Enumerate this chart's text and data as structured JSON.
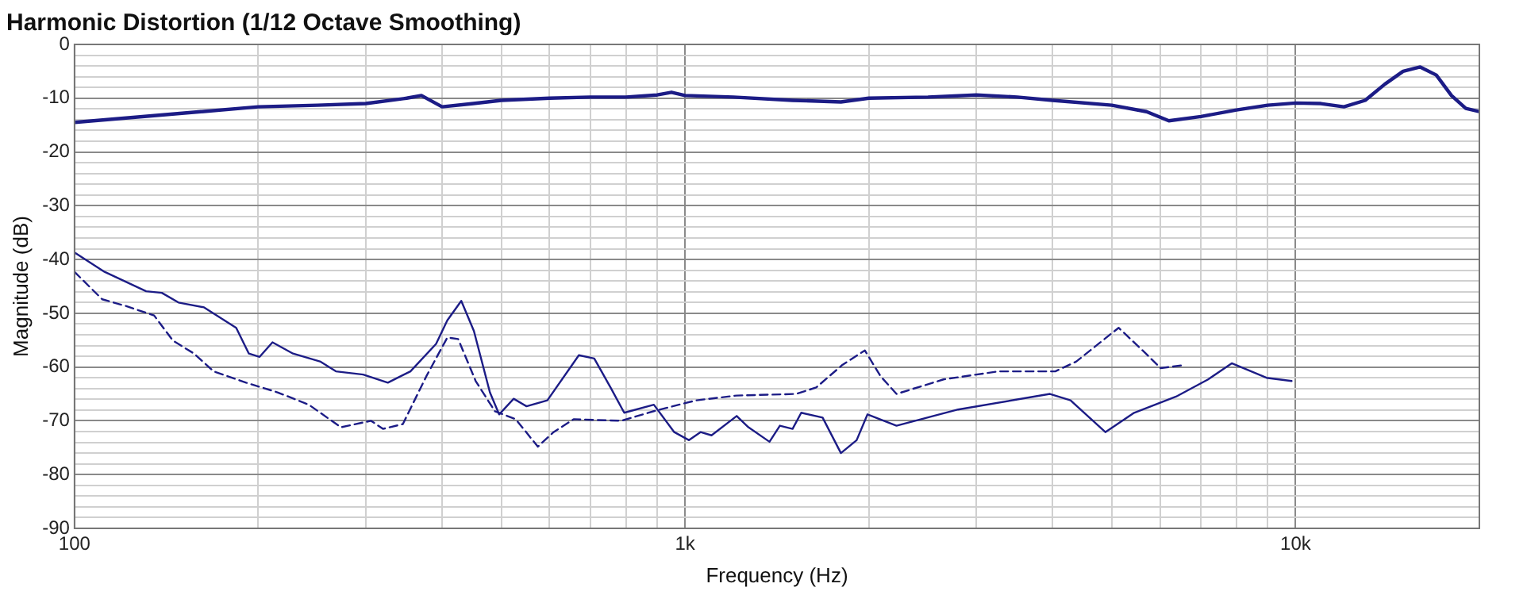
{
  "chart_data": {
    "type": "line",
    "title": "Harmonic Distortion (1/12 Octave Smoothing)",
    "xlabel": "Frequency (Hz)",
    "ylabel": "Magnitude (dB)",
    "log": "x",
    "grid": true,
    "marker": "none",
    "xlim": [
      100,
      20000
    ],
    "xticks": [
      100,
      {
        "value": 200,
        "label": null
      },
      {
        "value": 300,
        "label": null
      },
      {
        "value": 400,
        "label": null
      },
      {
        "value": 500,
        "label": null
      },
      {
        "value": 600,
        "label": null
      },
      {
        "value": 700,
        "label": null
      },
      {
        "value": 800,
        "label": null
      },
      {
        "value": 900,
        "label": null
      },
      {
        "value": 1000,
        "label": "1k"
      },
      {
        "value": 2000,
        "label": null
      },
      {
        "value": 3000,
        "label": null
      },
      {
        "value": 4000,
        "label": null
      },
      {
        "value": 5000,
        "label": null
      },
      {
        "value": 6000,
        "label": null
      },
      {
        "value": 7000,
        "label": null
      },
      {
        "value": 8000,
        "label": null
      },
      {
        "value": 9000,
        "label": null
      },
      {
        "value": 10000,
        "label": "10k"
      },
      {
        "value": 20000,
        "label": null
      }
    ],
    "ylim": [
      -90,
      0
    ],
    "yticks": [
      -90,
      {
        "value": -88,
        "label": null
      },
      {
        "value": -86,
        "label": null
      },
      {
        "value": -84,
        "label": null
      },
      {
        "value": -82,
        "label": null
      },
      -80,
      {
        "value": -78,
        "label": null
      },
      {
        "value": -76,
        "label": null
      },
      {
        "value": -74,
        "label": null
      },
      {
        "value": -72,
        "label": null
      },
      -70,
      {
        "value": -68,
        "label": null
      },
      {
        "value": -66,
        "label": null
      },
      {
        "value": -64,
        "label": null
      },
      {
        "value": -62,
        "label": null
      },
      -60,
      {
        "value": -58,
        "label": null
      },
      {
        "value": -56,
        "label": null
      },
      {
        "value": -54,
        "label": null
      },
      {
        "value": -52,
        "label": null
      },
      -50,
      {
        "value": -48,
        "label": null
      },
      {
        "value": -46,
        "label": null
      },
      {
        "value": -44,
        "label": null
      },
      {
        "value": -42,
        "label": null
      },
      -40,
      {
        "value": -38,
        "label": null
      },
      {
        "value": -36,
        "label": null
      },
      {
        "value": -34,
        "label": null
      },
      {
        "value": -32,
        "label": null
      },
      -30,
      {
        "value": -28,
        "label": null
      },
      {
        "value": -26,
        "label": null
      },
      {
        "value": -24,
        "label": null
      },
      {
        "value": -22,
        "label": null
      },
      -20,
      {
        "value": -18,
        "label": null
      },
      {
        "value": -16,
        "label": null
      },
      {
        "value": -14,
        "label": null
      },
      {
        "value": -12,
        "label": null
      },
      -10,
      {
        "value": -8,
        "label": null
      },
      {
        "value": -6,
        "label": null
      },
      {
        "value": -4,
        "label": null
      },
      {
        "value": -2,
        "label": null
      },
      0
    ],
    "series": [
      {
        "color": "#1c1c86",
        "line_style": "solid",
        "x": [
          100,
          150,
          200,
          250,
          300,
          350,
          370,
          400,
          450,
          500,
          600,
          700,
          800,
          900,
          950,
          1000,
          1200,
          1500,
          1800,
          2000,
          2500,
          3000,
          3500,
          4000,
          5000,
          5700,
          6200,
          7000,
          8000,
          9000,
          10000,
          11000,
          12000,
          13000,
          14000,
          15000,
          16000,
          17000,
          18000,
          19000,
          20000
        ],
        "values": [
          -14.5,
          -12.8,
          -11.6,
          -11.3,
          -11,
          -10,
          -9.5,
          -11.6,
          -11,
          -10.4,
          -10,
          -9.8,
          -9.8,
          -9.4,
          -8.9,
          -9.5,
          -9.8,
          -10.4,
          -10.7,
          -10,
          -9.8,
          -9.4,
          -9.8,
          -10.4,
          -11.3,
          -12.5,
          -14.2,
          -13.4,
          -12.2,
          -11.3,
          -10.9,
          -11,
          -11.6,
          -10.4,
          -7.4,
          -5,
          -4.2,
          -5.7,
          -9.5,
          -11.9,
          -12.5
        ]
      },
      {
        "color": "#1c1c86",
        "line_style": "solid",
        "x": [
          100,
          112,
          131,
          139,
          148,
          163,
          184,
          193,
          201,
          211,
          228,
          253,
          268,
          297,
          326,
          355,
          391,
          408,
          430,
          451,
          479,
          496,
          524,
          550,
          595,
          670,
          710,
          755,
          795,
          889,
          960,
          1015,
          1060,
          1105,
          1215,
          1270,
          1375,
          1430,
          1500,
          1550,
          1680,
          1800,
          1910,
          1990,
          2220,
          2800,
          3960,
          4280,
          4880,
          5440,
          6370,
          7190,
          7860,
          8960,
          9850
        ],
        "values": [
          -38.7,
          -42.3,
          -45.9,
          -46.2,
          -48,
          -48.9,
          -52.7,
          -57.5,
          -58.1,
          -55.4,
          -57.5,
          -59,
          -60.8,
          -61.4,
          -62.9,
          -60.8,
          -55.7,
          -51.3,
          -47.7,
          -53.3,
          -64.7,
          -68.8,
          -65.9,
          -67.3,
          -66.2,
          -57.8,
          -58.4,
          -63.8,
          -68.5,
          -67,
          -72.1,
          -73.6,
          -72.1,
          -72.7,
          -69.1,
          -71.2,
          -73.9,
          -70.9,
          -71.5,
          -68.5,
          -69.4,
          -76,
          -73.6,
          -68.8,
          -70.9,
          -67.9,
          -65,
          -66.2,
          -72.1,
          -68.5,
          -65.5,
          -62.3,
          -59.3,
          -62,
          -62.6
        ]
      },
      {
        "color": "#1c1c86",
        "line_style": "dashed",
        "x": [
          100,
          111,
          121,
          135,
          145,
          157,
          169,
          191,
          215,
          242,
          273,
          306,
          320,
          345,
          377,
          408,
          425,
          454,
          488,
          528,
          574,
          609,
          657,
          786,
          889,
          1042,
          1215,
          1520,
          1640,
          1810,
          1970,
          2090,
          2220,
          2650,
          3260,
          4040,
          4370,
          5130,
          5650,
          6010,
          6590
        ],
        "values": [
          -42.3,
          -47.4,
          -48.6,
          -50.4,
          -55.1,
          -57.5,
          -60.8,
          -62.9,
          -64.7,
          -67,
          -71.2,
          -70,
          -71.5,
          -70.6,
          -61.7,
          -54.5,
          -54.8,
          -62.6,
          -68.2,
          -69.7,
          -74.8,
          -72.1,
          -69.7,
          -70,
          -68.2,
          -66.2,
          -65.3,
          -65,
          -63.8,
          -59.6,
          -56.9,
          -61.7,
          -65,
          -62.3,
          -60.8,
          -60.8,
          -59,
          -52.7,
          -57.2,
          -60.2,
          -59.6
        ]
      }
    ]
  }
}
